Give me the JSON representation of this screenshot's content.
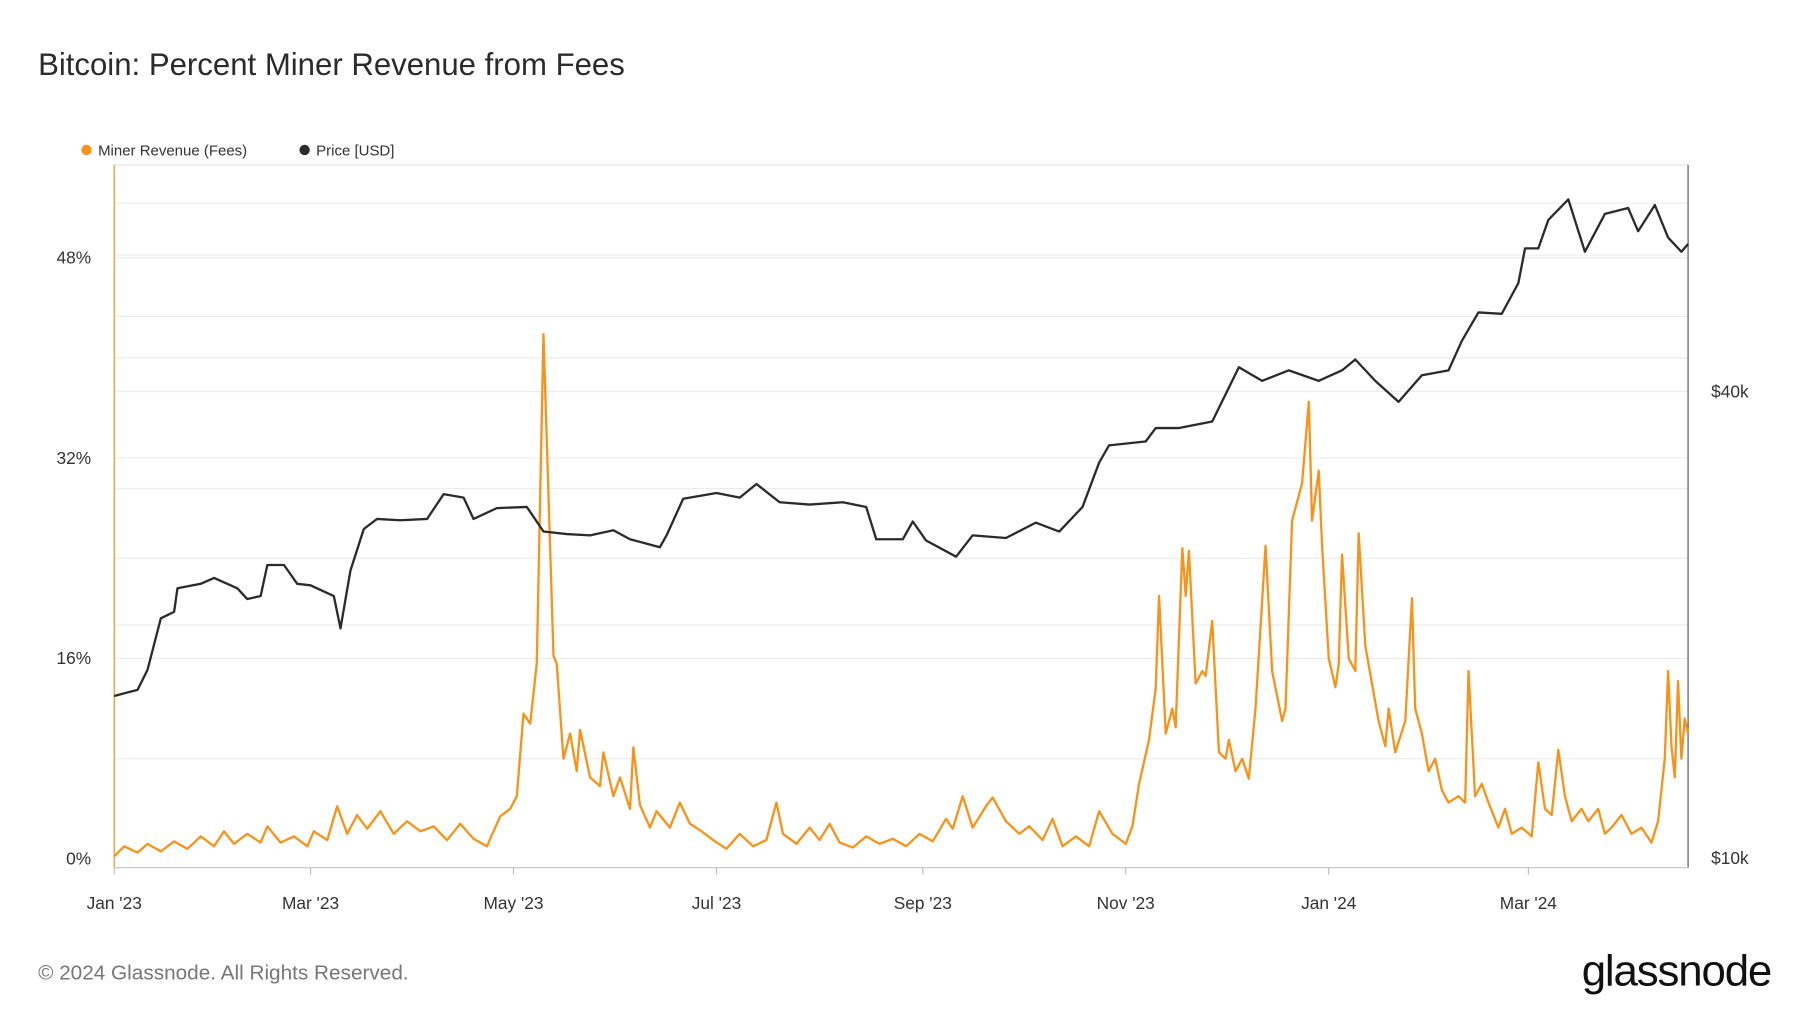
{
  "chart_data": {
    "type": "line",
    "title": "Bitcoin: Percent Miner Revenue from Fees",
    "legend_position": "top-left",
    "grid": true,
    "x_ticks": [
      "Jan '23",
      "Mar '23",
      "May '23",
      "Jul '23",
      "Sep '23",
      "Nov '23",
      "Jan '24",
      "Mar '24"
    ],
    "x_tick_dates": [
      "2023-01-01",
      "2023-03-01",
      "2023-05-01",
      "2023-07-01",
      "2023-09-01",
      "2023-11-01",
      "2024-01-01",
      "2024-03-01"
    ],
    "xlim": [
      "2023-01-01",
      "2024-04-18"
    ],
    "y_left": {
      "ticks": [
        "0%",
        "16%",
        "32%",
        "48%"
      ],
      "tick_values": [
        0,
        16,
        32,
        48
      ],
      "ylim": [
        -0.7,
        55.4
      ],
      "scale": "linear"
    },
    "y_right": {
      "ticks": [
        "$10k",
        "$40k"
      ],
      "tick_values": [
        10000,
        40000
      ],
      "ylim": [
        9730,
        78400
      ],
      "scale": "log"
    },
    "series": [
      {
        "name": "Miner Revenue (Fees)",
        "color": "#f7931a",
        "axis": "left",
        "points": [
          [
            "2023-01-01",
            0.2
          ],
          [
            "2023-01-04",
            1.0
          ],
          [
            "2023-01-08",
            0.5
          ],
          [
            "2023-01-11",
            1.2
          ],
          [
            "2023-01-15",
            0.6
          ],
          [
            "2023-01-19",
            1.4
          ],
          [
            "2023-01-23",
            0.8
          ],
          [
            "2023-01-27",
            1.8
          ],
          [
            "2023-01-31",
            1.0
          ],
          [
            "2023-02-03",
            2.2
          ],
          [
            "2023-02-06",
            1.2
          ],
          [
            "2023-02-10",
            2.0
          ],
          [
            "2023-02-14",
            1.3
          ],
          [
            "2023-02-16",
            2.6
          ],
          [
            "2023-02-20",
            1.3
          ],
          [
            "2023-02-24",
            1.8
          ],
          [
            "2023-02-28",
            1.0
          ],
          [
            "2023-03-02",
            2.2
          ],
          [
            "2023-03-06",
            1.5
          ],
          [
            "2023-03-09",
            4.2
          ],
          [
            "2023-03-12",
            2.0
          ],
          [
            "2023-03-15",
            3.5
          ],
          [
            "2023-03-18",
            2.4
          ],
          [
            "2023-03-22",
            3.8
          ],
          [
            "2023-03-26",
            2.0
          ],
          [
            "2023-03-30",
            3.0
          ],
          [
            "2023-04-03",
            2.2
          ],
          [
            "2023-04-07",
            2.6
          ],
          [
            "2023-04-11",
            1.5
          ],
          [
            "2023-04-15",
            2.8
          ],
          [
            "2023-04-19",
            1.6
          ],
          [
            "2023-04-23",
            1.0
          ],
          [
            "2023-04-27",
            3.4
          ],
          [
            "2023-04-30",
            4.0
          ],
          [
            "2023-05-02",
            5.0
          ],
          [
            "2023-05-04",
            11.6
          ],
          [
            "2023-05-06",
            10.8
          ],
          [
            "2023-05-08",
            15.6
          ],
          [
            "2023-05-10",
            41.9
          ],
          [
            "2023-05-13",
            16.2
          ],
          [
            "2023-05-14",
            15.6
          ],
          [
            "2023-05-16",
            8.0
          ],
          [
            "2023-05-18",
            10.0
          ],
          [
            "2023-05-20",
            7.0
          ],
          [
            "2023-05-21",
            10.3
          ],
          [
            "2023-05-24",
            6.5
          ],
          [
            "2023-05-27",
            5.8
          ],
          [
            "2023-05-28",
            8.5
          ],
          [
            "2023-05-31",
            5.0
          ],
          [
            "2023-06-02",
            6.5
          ],
          [
            "2023-06-05",
            4.0
          ],
          [
            "2023-06-06",
            8.9
          ],
          [
            "2023-06-08",
            4.3
          ],
          [
            "2023-06-11",
            2.5
          ],
          [
            "2023-06-13",
            3.8
          ],
          [
            "2023-06-17",
            2.5
          ],
          [
            "2023-06-20",
            4.5
          ],
          [
            "2023-06-23",
            2.8
          ],
          [
            "2023-06-26",
            2.3
          ],
          [
            "2023-06-30",
            1.5
          ],
          [
            "2023-07-04",
            0.8
          ],
          [
            "2023-07-08",
            2.0
          ],
          [
            "2023-07-12",
            1.0
          ],
          [
            "2023-07-16",
            1.5
          ],
          [
            "2023-07-19",
            4.5
          ],
          [
            "2023-07-21",
            2.0
          ],
          [
            "2023-07-25",
            1.2
          ],
          [
            "2023-07-29",
            2.5
          ],
          [
            "2023-08-01",
            1.5
          ],
          [
            "2023-08-04",
            2.8
          ],
          [
            "2023-08-07",
            1.3
          ],
          [
            "2023-08-11",
            0.9
          ],
          [
            "2023-08-15",
            1.8
          ],
          [
            "2023-08-19",
            1.2
          ],
          [
            "2023-08-23",
            1.6
          ],
          [
            "2023-08-27",
            1.0
          ],
          [
            "2023-08-31",
            2.0
          ],
          [
            "2023-09-04",
            1.4
          ],
          [
            "2023-09-08",
            3.2
          ],
          [
            "2023-09-10",
            2.4
          ],
          [
            "2023-09-13",
            5.0
          ],
          [
            "2023-09-16",
            2.5
          ],
          [
            "2023-09-20",
            4.2
          ],
          [
            "2023-09-22",
            4.9
          ],
          [
            "2023-09-26",
            3.0
          ],
          [
            "2023-09-30",
            2.0
          ],
          [
            "2023-10-03",
            2.6
          ],
          [
            "2023-10-07",
            1.5
          ],
          [
            "2023-10-10",
            3.2
          ],
          [
            "2023-10-13",
            1.0
          ],
          [
            "2023-10-17",
            1.8
          ],
          [
            "2023-10-21",
            1.0
          ],
          [
            "2023-10-24",
            3.8
          ],
          [
            "2023-10-28",
            2.0
          ],
          [
            "2023-11-01",
            1.2
          ],
          [
            "2023-11-03",
            2.6
          ],
          [
            "2023-11-05",
            6.0
          ],
          [
            "2023-11-08",
            9.5
          ],
          [
            "2023-11-10",
            13.6
          ],
          [
            "2023-11-11",
            21.0
          ],
          [
            "2023-11-13",
            10.0
          ],
          [
            "2023-11-15",
            12.0
          ],
          [
            "2023-11-16",
            10.5
          ],
          [
            "2023-11-18",
            24.8
          ],
          [
            "2023-11-19",
            21.0
          ],
          [
            "2023-11-20",
            24.6
          ],
          [
            "2023-11-22",
            14.0
          ],
          [
            "2023-11-24",
            15.0
          ],
          [
            "2023-11-25",
            14.6
          ],
          [
            "2023-11-27",
            19.0
          ],
          [
            "2023-11-29",
            8.5
          ],
          [
            "2023-12-01",
            8.0
          ],
          [
            "2023-12-02",
            9.5
          ],
          [
            "2023-12-04",
            7.0
          ],
          [
            "2023-12-06",
            8.0
          ],
          [
            "2023-12-08",
            6.4
          ],
          [
            "2023-12-10",
            12.0
          ],
          [
            "2023-12-13",
            25.0
          ],
          [
            "2023-12-15",
            15.0
          ],
          [
            "2023-12-18",
            11.0
          ],
          [
            "2023-12-19",
            12.0
          ],
          [
            "2023-12-21",
            27.0
          ],
          [
            "2023-12-24",
            30.0
          ],
          [
            "2023-12-26",
            36.5
          ],
          [
            "2023-12-27",
            27.0
          ],
          [
            "2023-12-28",
            29.0
          ],
          [
            "2023-12-29",
            31.0
          ],
          [
            "2023-12-30",
            25.0
          ],
          [
            "2024-01-01",
            16.0
          ],
          [
            "2024-01-03",
            13.7
          ],
          [
            "2024-01-04",
            15.5
          ],
          [
            "2024-01-05",
            24.3
          ],
          [
            "2024-01-07",
            16.0
          ],
          [
            "2024-01-09",
            15.0
          ],
          [
            "2024-01-10",
            26.0
          ],
          [
            "2024-01-12",
            17.0
          ],
          [
            "2024-01-14",
            14.0
          ],
          [
            "2024-01-16",
            11.0
          ],
          [
            "2024-01-18",
            9.0
          ],
          [
            "2024-01-19",
            12.0
          ],
          [
            "2024-01-21",
            8.5
          ],
          [
            "2024-01-24",
            11.0
          ],
          [
            "2024-01-26",
            20.8
          ],
          [
            "2024-01-27",
            12.0
          ],
          [
            "2024-01-29",
            10.0
          ],
          [
            "2024-01-31",
            7.0
          ],
          [
            "2024-02-02",
            8.0
          ],
          [
            "2024-02-04",
            5.5
          ],
          [
            "2024-02-06",
            4.5
          ],
          [
            "2024-02-09",
            5.0
          ],
          [
            "2024-02-11",
            4.5
          ],
          [
            "2024-02-12",
            15.0
          ],
          [
            "2024-02-14",
            5.0
          ],
          [
            "2024-02-16",
            6.0
          ],
          [
            "2024-02-18",
            4.5
          ],
          [
            "2024-02-21",
            2.5
          ],
          [
            "2024-02-23",
            4.0
          ],
          [
            "2024-02-25",
            2.0
          ],
          [
            "2024-02-28",
            2.5
          ],
          [
            "2024-03-02",
            1.8
          ],
          [
            "2024-03-04",
            7.7
          ],
          [
            "2024-03-06",
            4.0
          ],
          [
            "2024-03-08",
            3.5
          ],
          [
            "2024-03-10",
            8.7
          ],
          [
            "2024-03-12",
            5.0
          ],
          [
            "2024-03-14",
            3.0
          ],
          [
            "2024-03-17",
            4.0
          ],
          [
            "2024-03-19",
            3.0
          ],
          [
            "2024-03-22",
            4.0
          ],
          [
            "2024-03-24",
            2.0
          ],
          [
            "2024-03-26",
            2.5
          ],
          [
            "2024-03-29",
            3.5
          ],
          [
            "2024-04-01",
            2.0
          ],
          [
            "2024-04-04",
            2.5
          ],
          [
            "2024-04-07",
            1.3
          ],
          [
            "2024-04-09",
            3.0
          ],
          [
            "2024-04-11",
            8.0
          ],
          [
            "2024-04-12",
            15.0
          ],
          [
            "2024-04-13",
            9.0
          ],
          [
            "2024-04-14",
            6.5
          ],
          [
            "2024-04-15",
            14.2
          ],
          [
            "2024-04-16",
            8.0
          ],
          [
            "2024-04-17",
            11.2
          ],
          [
            "2024-04-18",
            10.0
          ]
        ]
      },
      {
        "name": "Price [USD]",
        "color": "#2b2b2b",
        "axis": "right",
        "points": [
          [
            "2023-01-01",
            16200
          ],
          [
            "2023-01-08",
            16500
          ],
          [
            "2023-01-11",
            17500
          ],
          [
            "2023-01-15",
            20400
          ],
          [
            "2023-01-19",
            20800
          ],
          [
            "2023-01-20",
            22300
          ],
          [
            "2023-01-27",
            22600
          ],
          [
            "2023-01-31",
            23000
          ],
          [
            "2023-02-07",
            22300
          ],
          [
            "2023-02-10",
            21600
          ],
          [
            "2023-02-14",
            21800
          ],
          [
            "2023-02-16",
            23900
          ],
          [
            "2023-02-21",
            23900
          ],
          [
            "2023-02-25",
            22600
          ],
          [
            "2023-03-01",
            22500
          ],
          [
            "2023-03-08",
            21800
          ],
          [
            "2023-03-10",
            19800
          ],
          [
            "2023-03-13",
            23500
          ],
          [
            "2023-03-17",
            26600
          ],
          [
            "2023-03-21",
            27400
          ],
          [
            "2023-03-28",
            27300
          ],
          [
            "2023-04-05",
            27400
          ],
          [
            "2023-04-10",
            29500
          ],
          [
            "2023-04-16",
            29200
          ],
          [
            "2023-04-19",
            27400
          ],
          [
            "2023-04-26",
            28300
          ],
          [
            "2023-05-05",
            28400
          ],
          [
            "2023-05-10",
            26400
          ],
          [
            "2023-05-17",
            26200
          ],
          [
            "2023-05-24",
            26100
          ],
          [
            "2023-05-31",
            26500
          ],
          [
            "2023-06-05",
            25800
          ],
          [
            "2023-06-14",
            25200
          ],
          [
            "2023-06-16",
            26100
          ],
          [
            "2023-06-21",
            29100
          ],
          [
            "2023-07-01",
            29600
          ],
          [
            "2023-07-08",
            29200
          ],
          [
            "2023-07-13",
            30400
          ],
          [
            "2023-07-20",
            28800
          ],
          [
            "2023-07-29",
            28600
          ],
          [
            "2023-08-08",
            28800
          ],
          [
            "2023-08-15",
            28400
          ],
          [
            "2023-08-18",
            25800
          ],
          [
            "2023-08-26",
            25800
          ],
          [
            "2023-08-29",
            27200
          ],
          [
            "2023-09-02",
            25700
          ],
          [
            "2023-09-11",
            24500
          ],
          [
            "2023-09-16",
            26100
          ],
          [
            "2023-09-26",
            25900
          ],
          [
            "2023-10-05",
            27100
          ],
          [
            "2023-10-12",
            26400
          ],
          [
            "2023-10-19",
            28400
          ],
          [
            "2023-10-24",
            32400
          ],
          [
            "2023-10-27",
            34100
          ],
          [
            "2023-11-07",
            34500
          ],
          [
            "2023-11-10",
            35900
          ],
          [
            "2023-11-17",
            35900
          ],
          [
            "2023-11-27",
            36600
          ],
          [
            "2023-12-05",
            43000
          ],
          [
            "2023-12-12",
            41300
          ],
          [
            "2023-12-20",
            42600
          ],
          [
            "2023-12-29",
            41300
          ],
          [
            "2024-01-05",
            42600
          ],
          [
            "2024-01-09",
            44000
          ],
          [
            "2024-01-15",
            41300
          ],
          [
            "2024-01-22",
            38800
          ],
          [
            "2024-01-29",
            42000
          ],
          [
            "2024-02-06",
            42600
          ],
          [
            "2024-02-10",
            46500
          ],
          [
            "2024-02-15",
            50600
          ],
          [
            "2024-02-22",
            50400
          ],
          [
            "2024-02-27",
            55200
          ],
          [
            "2024-02-29",
            61200
          ],
          [
            "2024-03-04",
            61200
          ],
          [
            "2024-03-07",
            66600
          ],
          [
            "2024-03-13",
            70800
          ],
          [
            "2024-03-18",
            60600
          ],
          [
            "2024-03-24",
            67800
          ],
          [
            "2024-03-31",
            69000
          ],
          [
            "2024-04-03",
            64400
          ],
          [
            "2024-04-08",
            69600
          ],
          [
            "2024-04-12",
            63200
          ],
          [
            "2024-04-16",
            60600
          ],
          [
            "2024-04-18",
            62000
          ]
        ]
      }
    ]
  },
  "footer": {
    "copyright": "© 2024 Glassnode. All Rights Reserved.",
    "logo": "glassnode"
  }
}
